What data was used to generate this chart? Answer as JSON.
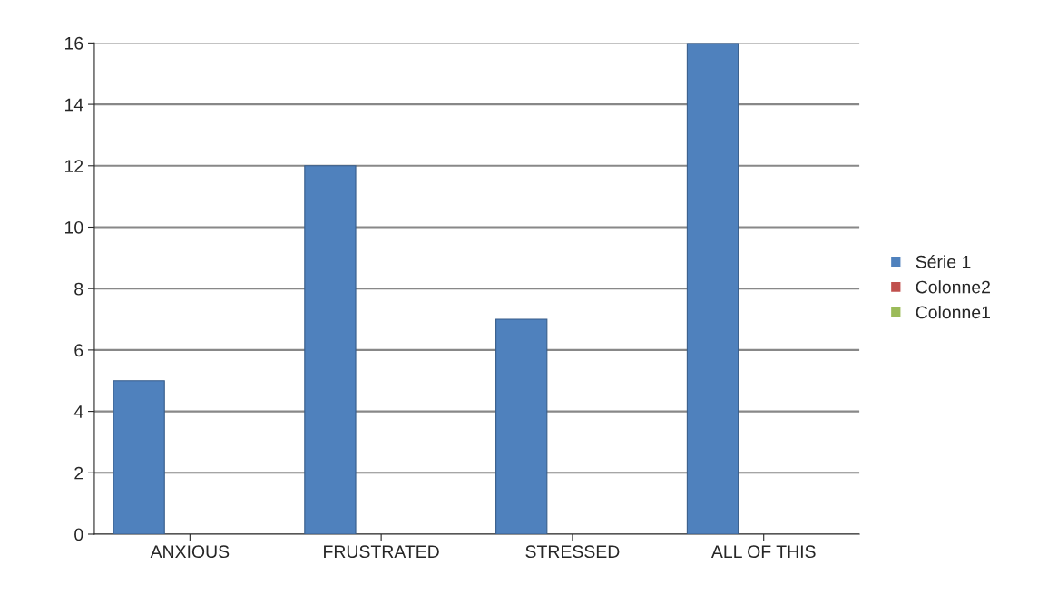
{
  "chart_data": {
    "type": "bar",
    "categories": [
      "ANXIOUS",
      "FRUSTRATED",
      "STRESSED",
      "ALL OF THIS"
    ],
    "series": [
      {
        "name": "Série 1",
        "color": "#4f81bd",
        "values": [
          5,
          12,
          7,
          16
        ]
      },
      {
        "name": "Colonne2",
        "color": "#c0504d",
        "values": [
          null,
          null,
          null,
          null
        ]
      },
      {
        "name": "Colonne1",
        "color": "#9bbb59",
        "values": [
          null,
          null,
          null,
          null
        ]
      }
    ],
    "ylim": [
      0,
      16
    ],
    "yticks": [
      0,
      2,
      4,
      6,
      8,
      10,
      12,
      14,
      16
    ],
    "grid": "y",
    "legend": "right"
  }
}
